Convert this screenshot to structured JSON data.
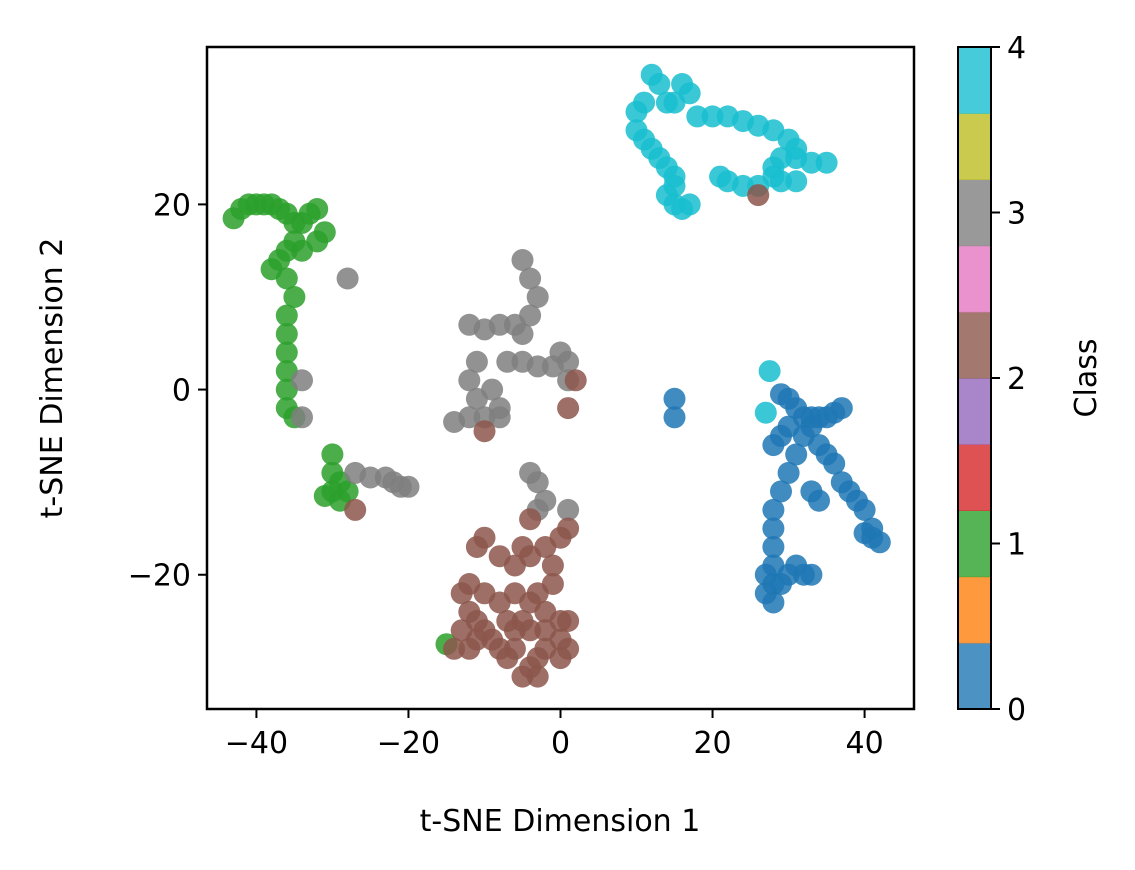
{
  "chart_data": {
    "type": "scatter",
    "xlabel": "t-SNE Dimension 1",
    "ylabel": "t-SNE Dimension 2",
    "xlim": [
      -46.5,
      46.5
    ],
    "ylim": [
      -34.5,
      37.0
    ],
    "xticks": [
      -40,
      -20,
      0,
      20,
      40
    ],
    "xtick_labels": [
      "−40",
      "−20",
      "0",
      "20",
      "40"
    ],
    "yticks": [
      -20,
      0,
      20
    ],
    "ytick_labels": [
      "−20",
      "0",
      "20"
    ],
    "grid": false,
    "colorbar": {
      "label": "Class",
      "min": 0,
      "max": 4,
      "ticks": [
        0,
        1,
        2,
        3,
        4
      ],
      "tick_labels": [
        "0",
        "1",
        "2",
        "3",
        "4"
      ],
      "colormap": "tab10",
      "colors": [
        "#1f77b4",
        "#ff7f0e",
        "#2ca02c",
        "#d62728",
        "#9467bd",
        "#8c564b",
        "#e377c2",
        "#7f7f7f",
        "#bcbd22",
        "#17becf"
      ]
    },
    "class_colors": {
      "0": "#1f77b4",
      "1": "#2ca02c",
      "2": "#8c564b",
      "3": "#7f7f7f",
      "4": "#17becf"
    },
    "series": [
      {
        "class": 4,
        "points": [
          [
            12,
            34
          ],
          [
            13,
            33
          ],
          [
            14,
            31
          ],
          [
            15,
            31
          ],
          [
            16,
            33
          ],
          [
            17,
            32
          ],
          [
            11,
            31
          ],
          [
            10,
            30
          ],
          [
            10,
            28
          ],
          [
            11,
            27
          ],
          [
            12,
            26
          ],
          [
            13,
            25
          ],
          [
            14,
            24
          ],
          [
            15,
            23
          ],
          [
            15,
            22
          ],
          [
            14,
            21
          ],
          [
            15,
            20
          ],
          [
            16,
            19.5
          ],
          [
            17,
            20
          ],
          [
            18,
            29.5
          ],
          [
            20,
            29.5
          ],
          [
            22,
            29.5
          ],
          [
            24,
            29
          ],
          [
            26,
            28.5
          ],
          [
            28,
            28
          ],
          [
            30,
            27
          ],
          [
            31,
            26
          ],
          [
            31,
            25
          ],
          [
            33,
            24.5
          ],
          [
            35,
            24.5
          ],
          [
            29,
            25
          ],
          [
            28,
            24
          ],
          [
            28,
            23
          ],
          [
            29,
            22.5
          ],
          [
            31,
            22.5
          ],
          [
            26,
            22
          ],
          [
            24,
            22
          ],
          [
            22,
            22.5
          ],
          [
            21,
            23
          ],
          [
            27.5,
            2
          ],
          [
            27,
            -2.5
          ]
        ]
      },
      {
        "class": 1,
        "points": [
          [
            -43,
            18.5
          ],
          [
            -42,
            19.5
          ],
          [
            -41,
            20
          ],
          [
            -40,
            20
          ],
          [
            -39,
            20
          ],
          [
            -38,
            20
          ],
          [
            -37,
            19.5
          ],
          [
            -36,
            19
          ],
          [
            -35,
            18
          ],
          [
            -34,
            18
          ],
          [
            -33,
            19
          ],
          [
            -32,
            19.5
          ],
          [
            -31,
            17
          ],
          [
            -32,
            16
          ],
          [
            -34,
            15
          ],
          [
            -35,
            16
          ],
          [
            -36,
            15
          ],
          [
            -37,
            14
          ],
          [
            -38,
            13
          ],
          [
            -36,
            12
          ],
          [
            -35,
            10
          ],
          [
            -36,
            8
          ],
          [
            -36,
            6
          ],
          [
            -36,
            4
          ],
          [
            -36,
            2
          ],
          [
            -36,
            0
          ],
          [
            -36,
            -2
          ],
          [
            -35,
            -3
          ],
          [
            -30,
            -7
          ],
          [
            -30,
            -9
          ],
          [
            -29,
            -10
          ],
          [
            -30,
            -11
          ],
          [
            -31,
            -11.5
          ],
          [
            -28,
            -11
          ],
          [
            -29,
            -12
          ],
          [
            -15,
            -27.5
          ]
        ]
      },
      {
        "class": 3,
        "points": [
          [
            -28,
            12
          ],
          [
            -34,
            1
          ],
          [
            -34,
            -3
          ],
          [
            -5,
            14
          ],
          [
            -4,
            12
          ],
          [
            -3,
            10
          ],
          [
            -4,
            8
          ],
          [
            -6,
            7
          ],
          [
            -8,
            7
          ],
          [
            -10,
            6.5
          ],
          [
            -12,
            7
          ],
          [
            -5,
            6
          ],
          [
            -11,
            3
          ],
          [
            -12,
            1
          ],
          [
            -11,
            -1
          ],
          [
            -10,
            -3
          ],
          [
            -12,
            -3
          ],
          [
            -14,
            -3.5
          ],
          [
            -8,
            -2
          ],
          [
            -8,
            -3
          ],
          [
            -9,
            0
          ],
          [
            -7,
            3
          ],
          [
            -5,
            3
          ],
          [
            -3,
            2.5
          ],
          [
            -1,
            2.5
          ],
          [
            0,
            4
          ],
          [
            1,
            3
          ],
          [
            1,
            1
          ],
          [
            -27,
            -9
          ],
          [
            -25,
            -9.5
          ],
          [
            -23,
            -9.5
          ],
          [
            -22,
            -10
          ],
          [
            -21,
            -10.5
          ],
          [
            -20,
            -10.5
          ],
          [
            -4,
            -9
          ],
          [
            -3,
            -10
          ],
          [
            -2,
            -12
          ],
          [
            -3,
            -13
          ],
          [
            1,
            -13
          ]
        ]
      },
      {
        "class": 2,
        "points": [
          [
            2,
            1
          ],
          [
            1,
            -2
          ],
          [
            -10,
            -4.5
          ],
          [
            -27,
            -13
          ],
          [
            26,
            21
          ],
          [
            -4,
            -14
          ],
          [
            -5,
            -17
          ],
          [
            -10,
            -16
          ],
          [
            -11,
            -17
          ],
          [
            -8,
            -18
          ],
          [
            -6,
            -19
          ],
          [
            -4,
            -18
          ],
          [
            -2,
            -17
          ],
          [
            0,
            -16
          ],
          [
            1,
            -15
          ],
          [
            -1,
            -19
          ],
          [
            -1,
            -21
          ],
          [
            -3,
            -22
          ],
          [
            -2,
            -24
          ],
          [
            -4,
            -23
          ],
          [
            -6,
            -22
          ],
          [
            -8,
            -23
          ],
          [
            -10,
            -22
          ],
          [
            -12,
            -21
          ],
          [
            -13,
            -22
          ],
          [
            -12,
            -24
          ],
          [
            -11,
            -25
          ],
          [
            -10,
            -26
          ],
          [
            -9,
            -27
          ],
          [
            -11,
            -27
          ],
          [
            -12,
            -28
          ],
          [
            -14,
            -28
          ],
          [
            -13,
            -26
          ],
          [
            -7,
            -25
          ],
          [
            -6,
            -26
          ],
          [
            -5,
            -25
          ],
          [
            -4,
            -26
          ],
          [
            -2,
            -26
          ],
          [
            0,
            -25
          ],
          [
            1,
            -25
          ],
          [
            0,
            -27
          ],
          [
            1,
            -28
          ],
          [
            0,
            -29
          ],
          [
            -2,
            -28
          ],
          [
            -3,
            -29
          ],
          [
            -4,
            -30
          ],
          [
            -5,
            -31
          ],
          [
            -3,
            -31
          ],
          [
            -6,
            -28
          ],
          [
            -7,
            -29
          ],
          [
            -8,
            -28
          ]
        ]
      },
      {
        "class": 0,
        "points": [
          [
            15,
            -1
          ],
          [
            15,
            -3
          ],
          [
            29,
            -0.5
          ],
          [
            30,
            -1
          ],
          [
            31,
            -2
          ],
          [
            32,
            -3
          ],
          [
            33,
            -3
          ],
          [
            34,
            -3
          ],
          [
            35,
            -3
          ],
          [
            36,
            -2.5
          ],
          [
            37,
            -2
          ],
          [
            33,
            -4
          ],
          [
            32,
            -5
          ],
          [
            30,
            -4
          ],
          [
            29,
            -5
          ],
          [
            28,
            -6
          ],
          [
            34,
            -6
          ],
          [
            35,
            -7
          ],
          [
            36,
            -8
          ],
          [
            37,
            -10
          ],
          [
            38,
            -11
          ],
          [
            39,
            -12
          ],
          [
            40,
            -13
          ],
          [
            41,
            -15
          ],
          [
            41,
            -16
          ],
          [
            42,
            -16.5
          ],
          [
            40,
            -15.5
          ],
          [
            33,
            -11
          ],
          [
            34,
            -12
          ],
          [
            31,
            -7
          ],
          [
            30,
            -9
          ],
          [
            29,
            -11
          ],
          [
            28,
            -13
          ],
          [
            28,
            -15
          ],
          [
            28,
            -17
          ],
          [
            28,
            -19
          ],
          [
            28,
            -21
          ],
          [
            27,
            -22
          ],
          [
            28,
            -23
          ],
          [
            29,
            -21
          ],
          [
            30,
            -20
          ],
          [
            31,
            -19
          ],
          [
            32,
            -20
          ],
          [
            33,
            -20
          ],
          [
            27,
            -20
          ]
        ]
      }
    ]
  }
}
